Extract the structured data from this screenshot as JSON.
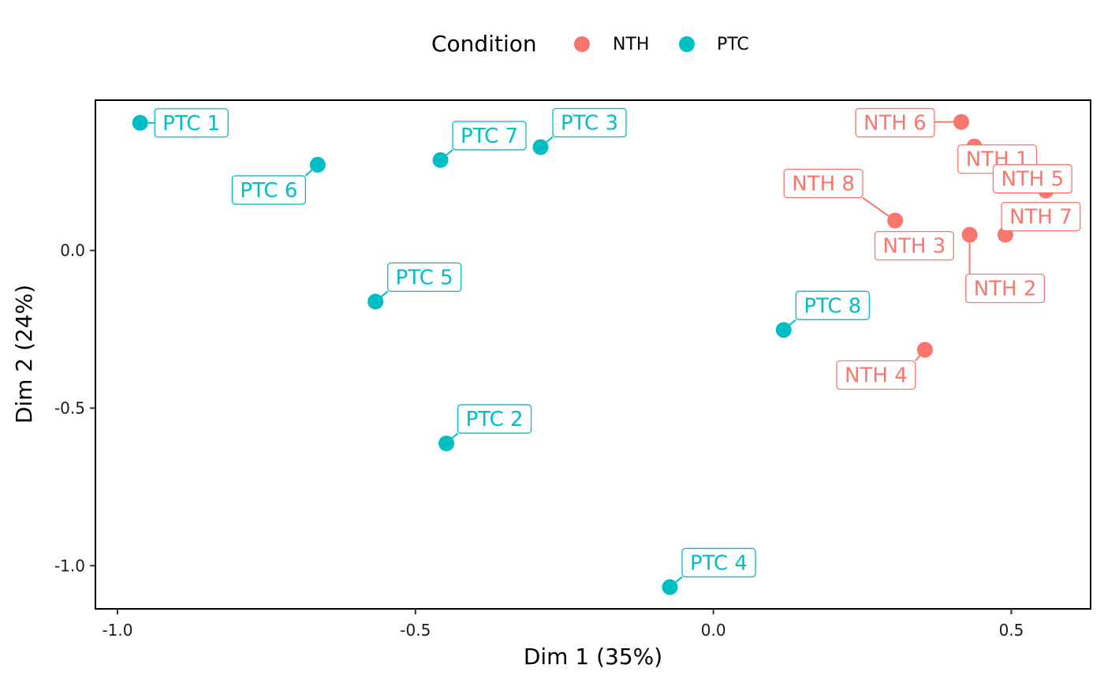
{
  "chart_data": {
    "type": "scatter",
    "xlabel": "Dim 1 (35%)",
    "ylabel": "Dim 2 (24%)",
    "xlim": [
      -1.037,
      0.633
    ],
    "ylim": [
      -1.137,
      0.477
    ],
    "x_ticks": [
      -1.0,
      -0.5,
      0.0,
      0.5
    ],
    "y_ticks": [
      -1.0,
      -0.5,
      0.0
    ],
    "x_tick_labels": [
      "-1.0",
      "-0.5",
      "0.0",
      "0.5"
    ],
    "y_tick_labels": [
      "-1.0",
      "-0.5",
      "0.0"
    ],
    "grid": false,
    "legend": {
      "title": "Condition",
      "placement": "top",
      "entries": [
        {
          "label": "NTH",
          "color": "#F8766D"
        },
        {
          "label": "PTC",
          "color": "#00BFC4"
        }
      ]
    },
    "series": [
      {
        "name": "NTH",
        "color": "#F8766D",
        "points": [
          {
            "label": "NTH 1",
            "x": 0.438,
            "y": 0.33
          },
          {
            "label": "NTH 2",
            "x": 0.43,
            "y": 0.05
          },
          {
            "label": "NTH 3",
            "x": 0.39,
            "y": 0.015
          },
          {
            "label": "NTH 4",
            "x": 0.355,
            "y": -0.315
          },
          {
            "label": "NTH 5",
            "x": 0.558,
            "y": 0.19
          },
          {
            "label": "NTH 6",
            "x": 0.416,
            "y": 0.408
          },
          {
            "label": "NTH 7",
            "x": 0.49,
            "y": 0.05
          },
          {
            "label": "NTH 8",
            "x": 0.305,
            "y": 0.095
          }
        ]
      },
      {
        "name": "PTC",
        "color": "#00BFC4",
        "points": [
          {
            "label": "PTC 1",
            "x": -0.962,
            "y": 0.405
          },
          {
            "label": "PTC 2",
            "x": -0.448,
            "y": -0.612
          },
          {
            "label": "PTC 3",
            "x": -0.29,
            "y": 0.328
          },
          {
            "label": "PTC 4",
            "x": -0.073,
            "y": -1.068
          },
          {
            "label": "PTC 5",
            "x": -0.567,
            "y": -0.162
          },
          {
            "label": "PTC 6",
            "x": -0.664,
            "y": 0.272
          },
          {
            "label": "PTC 7",
            "x": -0.458,
            "y": 0.287
          },
          {
            "label": "PTC 8",
            "x": 0.118,
            "y": -0.252
          }
        ]
      }
    ]
  }
}
